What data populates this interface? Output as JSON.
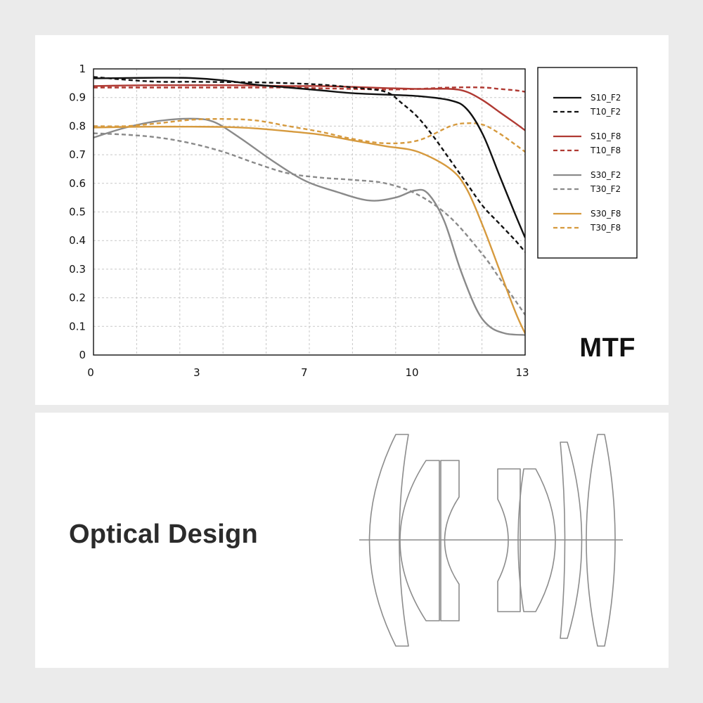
{
  "mtf_card": {
    "title": "MTF"
  },
  "optical_card": {
    "title": "Optical Design"
  },
  "chart_data": {
    "type": "line",
    "title": "MTF",
    "xlabel": "",
    "ylabel": "",
    "xlim": [
      0,
      13.3
    ],
    "ylim": [
      0,
      1
    ],
    "xticks": [
      "0",
      "3",
      "7",
      "10",
      "13"
    ],
    "xtick_values": [
      0,
      3.27,
      6.58,
      9.9,
      13.3
    ],
    "yticks": [
      "0",
      "0.1",
      "0.2",
      "0.3",
      "0.4",
      "0.5",
      "0.6",
      "0.7",
      "0.8",
      "0.9",
      "1"
    ],
    "ytick_values": [
      0,
      0.1,
      0.2,
      0.3,
      0.4,
      0.5,
      0.6,
      0.7,
      0.8,
      0.9,
      1
    ],
    "grid": true,
    "legend_position": "right",
    "series": [
      {
        "name": "S10_F2",
        "color": "#111111",
        "dashed": false,
        "x": [
          0,
          1,
          2,
          3,
          4,
          5,
          6,
          7,
          8,
          9,
          10,
          11,
          11.5,
          12,
          12.5,
          13,
          13.3
        ],
        "y": [
          0.967,
          0.968,
          0.969,
          0.968,
          0.96,
          0.945,
          0.935,
          0.925,
          0.915,
          0.91,
          0.905,
          0.89,
          0.86,
          0.77,
          0.63,
          0.49,
          0.41
        ]
      },
      {
        "name": "T10_F2",
        "color": "#111111",
        "dashed": true,
        "x": [
          0,
          1,
          2,
          3,
          4,
          5,
          6,
          7,
          8,
          9,
          9.5,
          10,
          10.5,
          11,
          11.5,
          12,
          12.5,
          13,
          13.3
        ],
        "y": [
          0.972,
          0.962,
          0.955,
          0.955,
          0.954,
          0.953,
          0.95,
          0.945,
          0.935,
          0.92,
          0.88,
          0.83,
          0.76,
          0.68,
          0.6,
          0.52,
          0.46,
          0.4,
          0.36
        ]
      },
      {
        "name": "S10_F8",
        "color": "#b03a33",
        "dashed": false,
        "x": [
          0,
          1,
          2,
          3,
          4,
          5,
          6,
          7,
          8,
          9,
          10,
          11,
          11.5,
          12,
          12.5,
          13,
          13.3
        ],
        "y": [
          0.94,
          0.942,
          0.943,
          0.943,
          0.943,
          0.942,
          0.94,
          0.94,
          0.937,
          0.933,
          0.93,
          0.93,
          0.92,
          0.89,
          0.85,
          0.81,
          0.785
        ]
      },
      {
        "name": "T10_F8",
        "color": "#b03a33",
        "dashed": true,
        "x": [
          0,
          1,
          2,
          3,
          4,
          5,
          6,
          7,
          8,
          9,
          10,
          11,
          12,
          12.5,
          13,
          13.3
        ],
        "y": [
          0.935,
          0.935,
          0.935,
          0.935,
          0.935,
          0.935,
          0.935,
          0.932,
          0.93,
          0.928,
          0.93,
          0.935,
          0.935,
          0.93,
          0.925,
          0.92
        ]
      },
      {
        "name": "S30_F2",
        "color": "#8a8a8a",
        "dashed": false,
        "x": [
          0,
          1,
          2,
          3,
          3.7,
          4.5,
          5.5,
          6.5,
          7.5,
          8.5,
          9.3,
          9.9,
          10.3,
          10.8,
          11.3,
          11.8,
          12.2,
          12.7,
          13.3
        ],
        "y": [
          0.76,
          0.795,
          0.818,
          0.826,
          0.815,
          0.76,
          0.68,
          0.61,
          0.57,
          0.54,
          0.55,
          0.575,
          0.565,
          0.47,
          0.3,
          0.16,
          0.1,
          0.075,
          0.07
        ]
      },
      {
        "name": "T30_F2",
        "color": "#8a8a8a",
        "dashed": true,
        "x": [
          0,
          1,
          2,
          3,
          4,
          5,
          6,
          7,
          8,
          9,
          10,
          11,
          12,
          12.5,
          13,
          13.3
        ],
        "y": [
          0.775,
          0.77,
          0.76,
          0.74,
          0.71,
          0.67,
          0.635,
          0.62,
          0.612,
          0.6,
          0.56,
          0.48,
          0.35,
          0.27,
          0.19,
          0.14
        ]
      },
      {
        "name": "S30_F8",
        "color": "#d69a3e",
        "dashed": false,
        "x": [
          0,
          1,
          2,
          3,
          4,
          5,
          6,
          7,
          8,
          9,
          10,
          11,
          11.5,
          12,
          12.5,
          13,
          13.3
        ],
        "y": [
          0.795,
          0.797,
          0.798,
          0.798,
          0.797,
          0.792,
          0.782,
          0.77,
          0.75,
          0.73,
          0.71,
          0.65,
          0.58,
          0.45,
          0.3,
          0.15,
          0.075
        ]
      },
      {
        "name": "T30_F8",
        "color": "#d69a3e",
        "dashed": true,
        "x": [
          0,
          1,
          2,
          3,
          4,
          5,
          6,
          7,
          8,
          9,
          10,
          11,
          11.5,
          12,
          12.5,
          13,
          13.3
        ],
        "y": [
          0.8,
          0.8,
          0.81,
          0.822,
          0.825,
          0.82,
          0.8,
          0.78,
          0.755,
          0.74,
          0.75,
          0.8,
          0.81,
          0.805,
          0.775,
          0.735,
          0.71
        ]
      }
    ]
  }
}
